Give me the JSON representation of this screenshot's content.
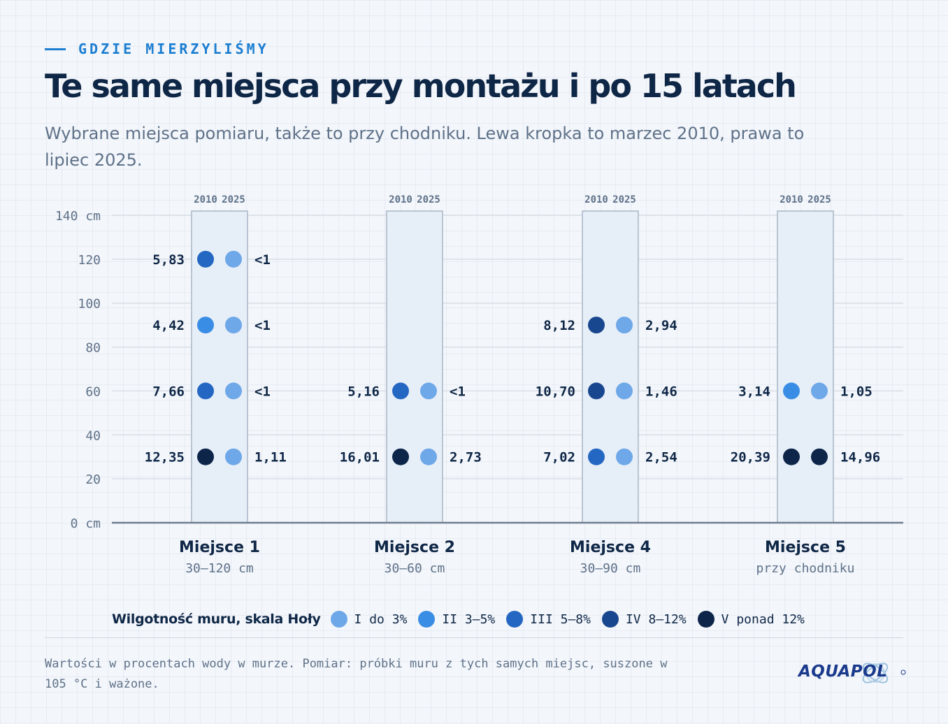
{
  "header": {
    "eyebrow": "GDZIE MIERZYLIŚMY",
    "title": "Te same miejsca przy montażu i po 15 latach",
    "subtitle": "Wybrane miejsca pomiaru, także to przy chodniku. Lewa kropka to marzec 2010, prawa to lipiec 2025."
  },
  "colors": {
    "accent": "#1c7ed1",
    "title": "#0f2747",
    "subtitle": "#5e7189",
    "column_fill": "#e6eef8",
    "column_stroke": "#a9b6c6",
    "grid": "#d8dee7",
    "baseline": "#6f7d8f"
  },
  "chart_data": {
    "type": "scatter",
    "title": "",
    "ylabel": "",
    "y_unit": "cm",
    "ylim": [
      0,
      140
    ],
    "y_ticks": [
      0,
      20,
      40,
      60,
      80,
      100,
      120,
      140
    ],
    "y_tick_labels": [
      "0 cm",
      "20",
      "40",
      "60",
      "80",
      "100",
      "120",
      "140 cm"
    ],
    "grid": true,
    "years": [
      "2010",
      "2025"
    ],
    "sites": [
      {
        "name": "Miejsce 1",
        "range": "30–120 cm",
        "points": [
          {
            "height": 120,
            "v2010": "5,83",
            "c2010": 3,
            "v2025": "<1",
            "c2025": 1
          },
          {
            "height": 90,
            "v2010": "4,42",
            "c2010": 2,
            "v2025": "<1",
            "c2025": 1
          },
          {
            "height": 60,
            "v2010": "7,66",
            "c2010": 3,
            "v2025": "<1",
            "c2025": 1
          },
          {
            "height": 30,
            "v2010": "12,35",
            "c2010": 5,
            "v2025": "1,11",
            "c2025": 1
          }
        ]
      },
      {
        "name": "Miejsce 2",
        "range": "30–60 cm",
        "points": [
          {
            "height": 60,
            "v2010": "5,16",
            "c2010": 3,
            "v2025": "<1",
            "c2025": 1
          },
          {
            "height": 30,
            "v2010": "16,01",
            "c2010": 5,
            "v2025": "2,73",
            "c2025": 1
          }
        ]
      },
      {
        "name": "Miejsce 4",
        "range": "30–90 cm",
        "points": [
          {
            "height": 90,
            "v2010": "8,12",
            "c2010": 4,
            "v2025": "2,94",
            "c2025": 1
          },
          {
            "height": 60,
            "v2010": "10,70",
            "c2010": 4,
            "v2025": "1,46",
            "c2025": 1
          },
          {
            "height": 30,
            "v2010": "7,02",
            "c2010": 3,
            "v2025": "2,54",
            "c2025": 1
          }
        ]
      },
      {
        "name": "Miejsce 5",
        "range": "przy chodniku",
        "points": [
          {
            "height": 60,
            "v2010": "3,14",
            "c2010": 2,
            "v2025": "1,05",
            "c2025": 1
          },
          {
            "height": 30,
            "v2010": "20,39",
            "c2010": 5,
            "v2025": "14,96",
            "c2025": 5
          }
        ]
      }
    ]
  },
  "legend": {
    "title": "Wilgotność muru, skala Hoły",
    "classes": [
      {
        "label": "I do 3%",
        "color": "#6ea8e8"
      },
      {
        "label": "II 3–5%",
        "color": "#3a8de4"
      },
      {
        "label": "III 5–8%",
        "color": "#2467c2"
      },
      {
        "label": "IV 8–12%",
        "color": "#19478f"
      },
      {
        "label": "V ponad 12%",
        "color": "#0c2549"
      }
    ]
  },
  "footnote": "Wartości w procentach wody w murze. Pomiar: próbki muru z tych samych miejsc, suszone w 105 °C i ważone.",
  "logo": {
    "text": "AQUAPOL"
  }
}
